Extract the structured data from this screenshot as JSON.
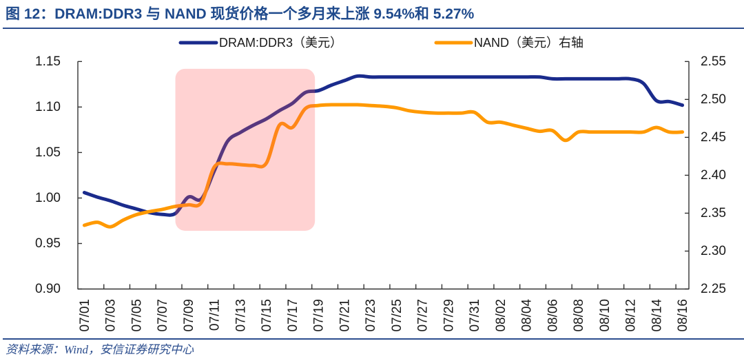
{
  "figure": {
    "source": "资料来源：Wind，安信证券研究中心"
  },
  "chart_data": {
    "type": "line",
    "title": "图 12：DRAM:DDR3 与 NAND 现货价格一个多月来上涨 9.54%和 5.27%",
    "xlabel": "",
    "ylabel_left": "",
    "ylabel_right": "",
    "grid": false,
    "legend": {
      "position": "top"
    },
    "categories": [
      "07/01",
      "07/02",
      "07/03",
      "07/04",
      "07/05",
      "07/06",
      "07/07",
      "07/08",
      "07/09",
      "07/10",
      "07/11",
      "07/12",
      "07/13",
      "07/14",
      "07/15",
      "07/16",
      "07/17",
      "07/18",
      "07/19",
      "07/20",
      "07/21",
      "07/22",
      "07/23",
      "07/24",
      "07/25",
      "07/26",
      "07/27",
      "07/28",
      "07/29",
      "07/30",
      "07/31",
      "08/01",
      "08/02",
      "08/03",
      "08/04",
      "08/05",
      "08/06",
      "08/07",
      "08/08",
      "08/09",
      "08/10",
      "08/11",
      "08/12",
      "08/13",
      "08/14",
      "08/15",
      "08/16"
    ],
    "x_tick_labels": [
      "07/01",
      "07/03",
      "07/05",
      "07/07",
      "07/09",
      "07/11",
      "07/13",
      "07/15",
      "07/17",
      "07/19",
      "07/21",
      "07/23",
      "07/25",
      "07/27",
      "07/29",
      "07/31",
      "08/02",
      "08/04",
      "08/06",
      "08/08",
      "08/10",
      "08/12",
      "08/14",
      "08/16"
    ],
    "y_left": {
      "min": 0.9,
      "max": 1.15,
      "step": 0.05,
      "tick_labels": [
        "0.90",
        "0.95",
        "1.00",
        "1.05",
        "1.10",
        "1.15"
      ]
    },
    "y_right": {
      "min": 2.25,
      "max": 2.55,
      "step": 0.05,
      "tick_labels": [
        "2.25",
        "2.30",
        "2.35",
        "2.40",
        "2.45",
        "2.50",
        "2.55"
      ]
    },
    "series": [
      {
        "name": "DRAM:DDR3（美元）",
        "axis": "left",
        "color": "#1A2B8C",
        "values": [
          1.006,
          1.001,
          0.997,
          0.992,
          0.988,
          0.984,
          0.982,
          0.983,
          1.001,
          0.999,
          1.03,
          1.062,
          1.072,
          1.08,
          1.087,
          1.096,
          1.104,
          1.116,
          1.118,
          1.124,
          1.129,
          1.134,
          1.133,
          1.133,
          1.133,
          1.133,
          1.133,
          1.133,
          1.133,
          1.133,
          1.133,
          1.133,
          1.133,
          1.133,
          1.133,
          1.133,
          1.131,
          1.131,
          1.131,
          1.131,
          1.131,
          1.131,
          1.131,
          1.126,
          1.107,
          1.106,
          1.102
        ]
      },
      {
        "name": "NAND（美元）右轴",
        "axis": "right",
        "color": "#FF9900",
        "values": [
          2.334,
          2.338,
          2.332,
          2.341,
          2.348,
          2.352,
          2.355,
          2.359,
          2.361,
          2.364,
          2.411,
          2.415,
          2.414,
          2.413,
          2.416,
          2.466,
          2.463,
          2.488,
          2.492,
          2.493,
          2.493,
          2.493,
          2.492,
          2.491,
          2.489,
          2.485,
          2.483,
          2.482,
          2.482,
          2.482,
          2.483,
          2.47,
          2.47,
          2.466,
          2.462,
          2.458,
          2.459,
          2.446,
          2.457,
          2.457,
          2.457,
          2.457,
          2.457,
          2.457,
          2.463,
          2.457,
          2.457
        ]
      }
    ],
    "highlight": {
      "x_from": "07/08",
      "x_to": "07/19",
      "axis": "left",
      "y_from": 0.964,
      "y_to": 1.142,
      "color": "#FF5A5A"
    }
  }
}
